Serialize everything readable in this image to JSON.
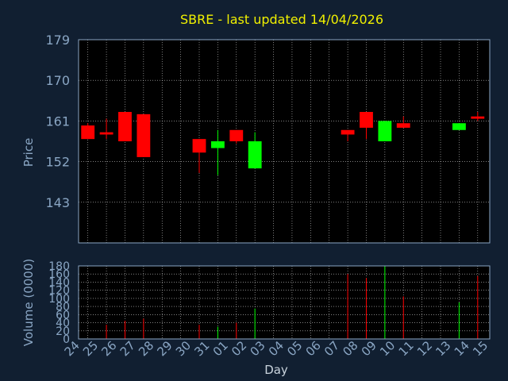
{
  "chart_data": [
    {
      "type": "candlestick",
      "title": "SBRE - last updated 14/04/2026",
      "ylabel": "Price",
      "ylim": [
        134,
        179
      ],
      "yticks": [
        179,
        170,
        161,
        152,
        143
      ],
      "up_color": "#00ff00",
      "down_color": "#ff0000",
      "grid": true,
      "candles": [
        {
          "day": "24",
          "open": 160.0,
          "close": 157.0,
          "high": 160.5,
          "low": 157.0
        },
        {
          "day": "25",
          "open": 158.5,
          "close": 158.0,
          "high": 161.5,
          "low": 157.0
        },
        {
          "day": "26",
          "open": 163.0,
          "close": 156.5,
          "high": 163.0,
          "low": 156.5
        },
        {
          "day": "27",
          "open": 162.5,
          "close": 153.0,
          "high": 162.5,
          "low": 153.0
        },
        {
          "day": "30",
          "open": 157.0,
          "close": 154.0,
          "high": 157.0,
          "low": 149.5
        },
        {
          "day": "31",
          "open": 155.0,
          "close": 156.5,
          "high": 159.0,
          "low": 149.0
        },
        {
          "day": "01",
          "open": 159.0,
          "close": 156.5,
          "high": 159.0,
          "low": 156.0
        },
        {
          "day": "02",
          "open": 150.5,
          "close": 156.5,
          "high": 158.5,
          "low": 150.5
        },
        {
          "day": "07",
          "open": 159.0,
          "close": 158.0,
          "high": 159.0,
          "low": 156.5
        },
        {
          "day": "08",
          "open": 163.0,
          "close": 159.5,
          "high": 163.0,
          "low": 157.0
        },
        {
          "day": "09",
          "open": 156.5,
          "close": 161.0,
          "high": 161.0,
          "low": 156.5
        },
        {
          "day": "10",
          "open": 160.5,
          "close": 159.5,
          "high": 162.0,
          "low": 159.5
        },
        {
          "day": "13",
          "open": 159.0,
          "close": 160.5,
          "high": 160.5,
          "low": 159.0
        },
        {
          "day": "14",
          "open": 162.0,
          "close": 161.5,
          "high": 163.0,
          "low": 161.0
        }
      ]
    },
    {
      "type": "bar",
      "xlabel": "Day",
      "ylabel": "Volume (0000)",
      "ylim": [
        0,
        180
      ],
      "yticks": [
        180,
        160,
        140,
        120,
        100,
        80,
        60,
        40,
        20,
        0
      ],
      "categories": [
        "24",
        "25",
        "26",
        "27",
        "28",
        "29",
        "30",
        "31",
        "01",
        "02",
        "03",
        "04",
        "05",
        "06",
        "07",
        "08",
        "09",
        "10",
        "11",
        "12",
        "13",
        "14",
        "15"
      ],
      "values": [
        0,
        35,
        45,
        50,
        0,
        0,
        35,
        30,
        40,
        75,
        0,
        0,
        0,
        0,
        160,
        150,
        180,
        105,
        0,
        0,
        90,
        155,
        0
      ],
      "colors": [
        "",
        "#ff0000",
        "#ff0000",
        "#ff0000",
        "",
        "",
        "#ff0000",
        "#00ff00",
        "#ff0000",
        "#00ff00",
        "",
        "",
        "",
        "",
        "#ff0000",
        "#ff0000",
        "#00ff00",
        "#ff0000",
        "",
        "",
        "#00ff00",
        "#ff0000",
        ""
      ]
    }
  ]
}
